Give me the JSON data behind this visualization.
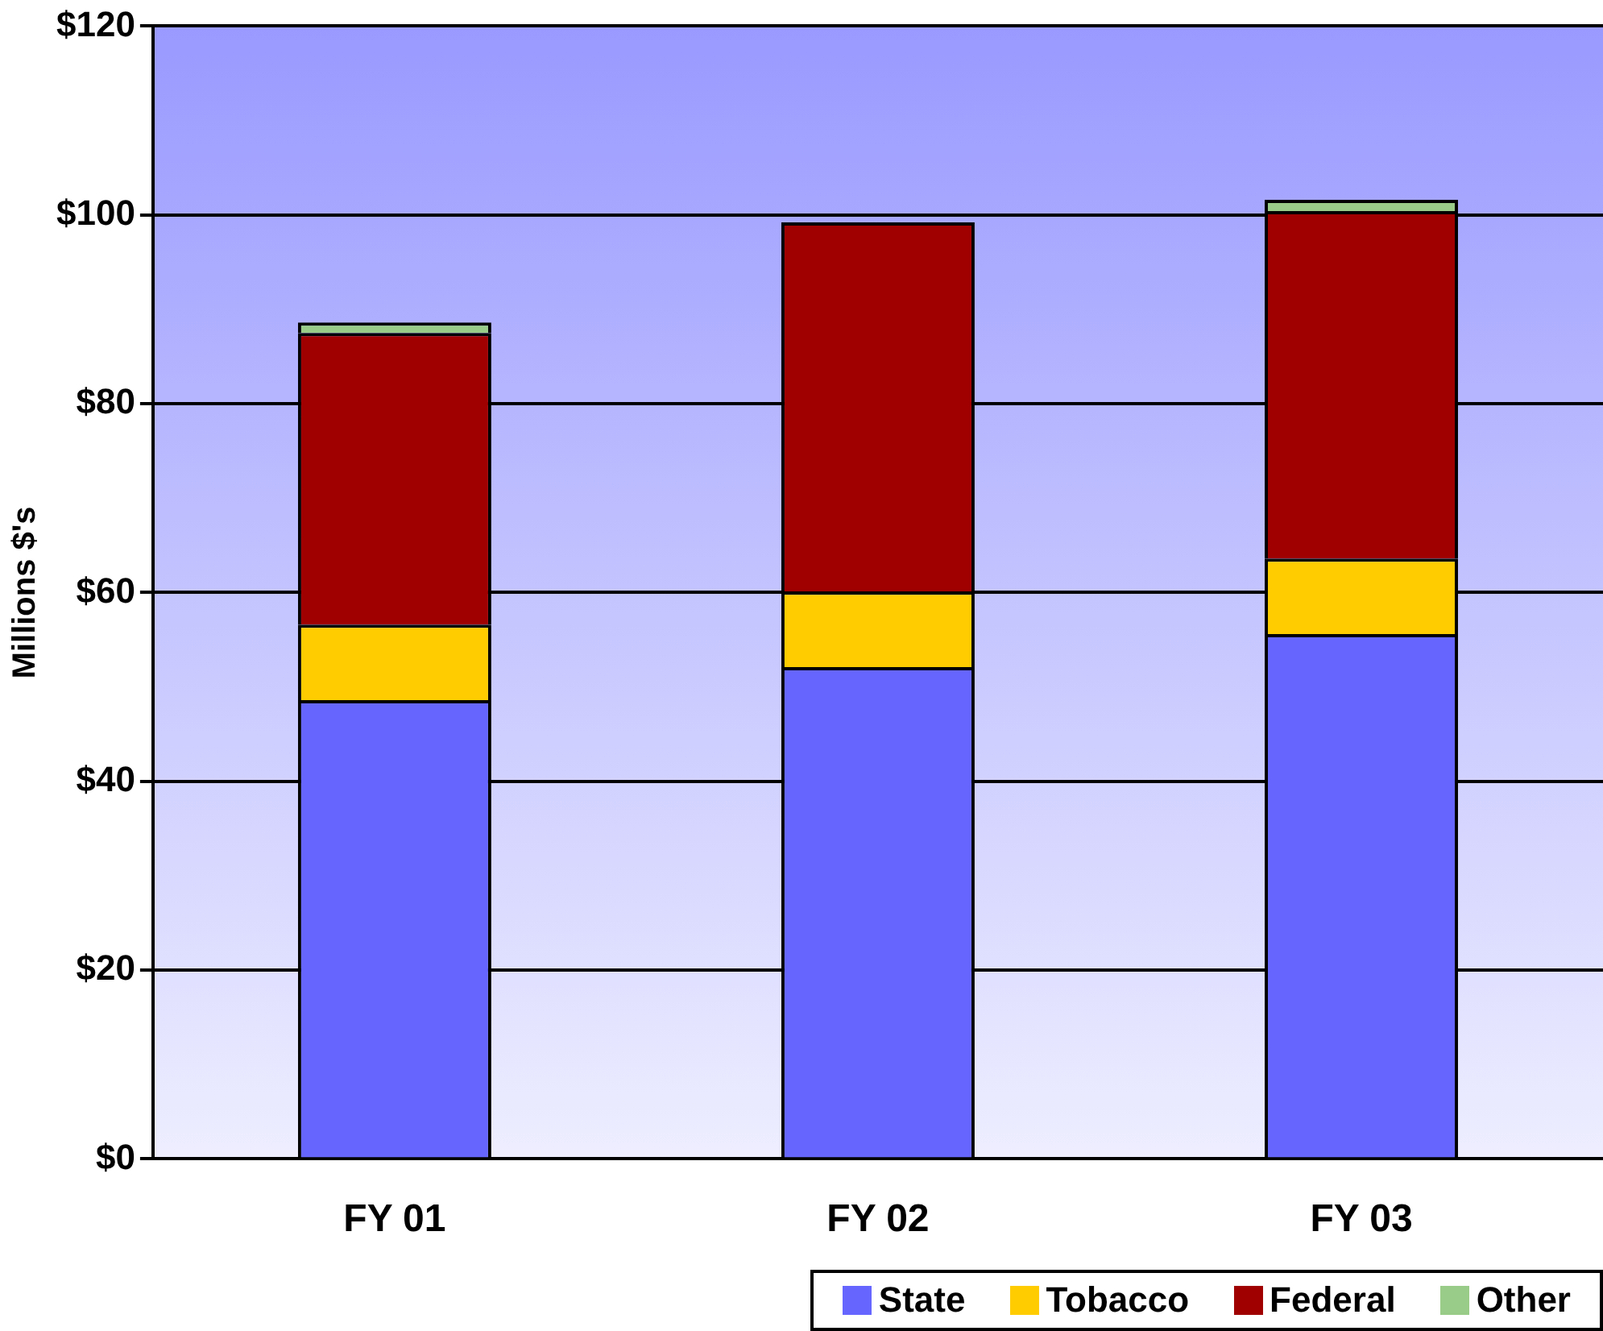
{
  "chart_data": {
    "type": "bar",
    "stacked": true,
    "ylabel": "Millions $'s",
    "categories": [
      "FY 01",
      "FY 02",
      "FY 03"
    ],
    "series": [
      {
        "name": "State",
        "color": "#6666ff",
        "values": [
          48.6,
          52.1,
          55.6
        ]
      },
      {
        "name": "Tobacco",
        "color": "#ffcc00",
        "values": [
          8.0,
          8.0,
          8.0
        ]
      },
      {
        "name": "Federal",
        "color": "#a00000",
        "values": [
          30.9,
          39.1,
          36.8
        ]
      },
      {
        "name": "Other",
        "color": "#99cc88",
        "values": [
          1.1,
          0,
          1.2
        ]
      }
    ],
    "ylim": [
      0,
      120
    ],
    "yticks": [
      {
        "value": 0,
        "label": "$0"
      },
      {
        "value": 20,
        "label": "$20"
      },
      {
        "value": 40,
        "label": "$40"
      },
      {
        "value": 60,
        "label": "$60"
      },
      {
        "value": 80,
        "label": "$80"
      },
      {
        "value": 100,
        "label": "$100"
      },
      {
        "value": 120,
        "label": "$120"
      }
    ],
    "grid": "y",
    "legend": "bottom right"
  }
}
